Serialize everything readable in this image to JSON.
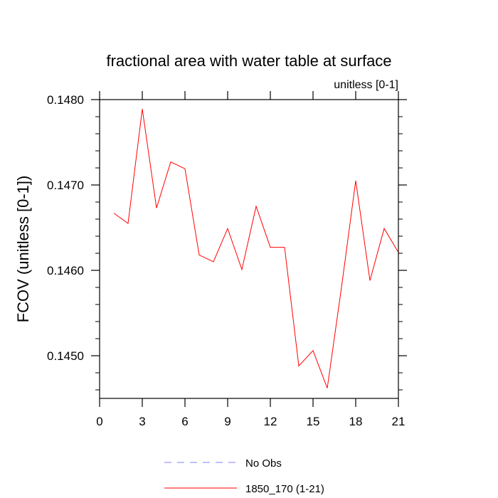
{
  "chart_data": {
    "type": "line",
    "title": "fractional area with water table at surface",
    "subtitle": "unitless [0-1]",
    "ylabel": "FCOV  (unitless [0-1])",
    "xlabel": "",
    "xlim": [
      0,
      21
    ],
    "ylim": [
      0.1445,
      0.148
    ],
    "xticks": [
      0,
      3,
      6,
      9,
      12,
      15,
      18,
      21
    ],
    "yticks": [
      0.145,
      0.146,
      0.147,
      0.148
    ],
    "ytick_labels": [
      "0.1450",
      "0.1460",
      "0.1470",
      "0.1480"
    ],
    "grid": false,
    "legend_position": "bottom-center",
    "series": [
      {
        "name": "No Obs",
        "color": "#8080ff",
        "dash": "dashed",
        "x": [],
        "values": []
      },
      {
        "name": "1850_170 (1-21)",
        "color": "#ff0000",
        "dash": "solid",
        "x": [
          1,
          2,
          3,
          4,
          5,
          6,
          7,
          8,
          9,
          10,
          11,
          12,
          13,
          14,
          15,
          16,
          17,
          18,
          19,
          20,
          21
        ],
        "values": [
          0.14667,
          0.14655,
          0.14789,
          0.14673,
          0.14727,
          0.14719,
          0.14618,
          0.1461,
          0.14649,
          0.14601,
          0.14675,
          0.14627,
          0.14627,
          0.14488,
          0.14506,
          0.14462,
          0.1458,
          0.14705,
          0.14588,
          0.14649,
          0.14621
        ]
      }
    ]
  }
}
